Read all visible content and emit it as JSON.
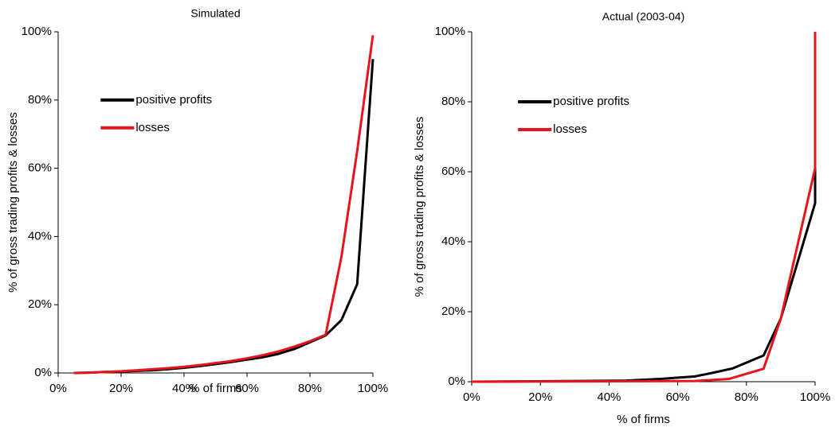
{
  "chart_data": [
    {
      "type": "line",
      "title": "Simulated",
      "xlabel": "% of firms",
      "ylabel": "% of gross trading profits & losses",
      "xlim": [
        0,
        100
      ],
      "ylim": [
        0,
        100
      ],
      "xticks": [
        {
          "value": 0,
          "label": "0%"
        },
        {
          "value": 20,
          "label": "20%"
        },
        {
          "value": 40,
          "label": "40%"
        },
        {
          "value": 60,
          "label": "60%"
        },
        {
          "value": 80,
          "label": "80%"
        },
        {
          "value": 100,
          "label": "100%"
        }
      ],
      "yticks": [
        {
          "value": 0,
          "label": "0%"
        },
        {
          "value": 20,
          "label": "20%"
        },
        {
          "value": 40,
          "label": "40%"
        },
        {
          "value": 60,
          "label": "60%"
        },
        {
          "value": 80,
          "label": "80%"
        },
        {
          "value": 100,
          "label": "100%"
        }
      ],
      "legend": "upper left",
      "series": [
        {
          "name": "positive profits",
          "color": "#000000",
          "x": [
            5,
            10,
            15,
            20,
            25,
            30,
            35,
            40,
            45,
            50,
            55,
            60,
            65,
            70,
            75,
            80,
            85,
            90,
            95,
            100
          ],
          "values": [
            0,
            0.1,
            0.3,
            0.4,
            0.6,
            0.8,
            1.1,
            1.5,
            2,
            2.6,
            3.2,
            3.9,
            4.6,
            5.6,
            7,
            9,
            11,
            15.5,
            26,
            92
          ]
        },
        {
          "name": "losses",
          "color": "#e8141b",
          "x": [
            5,
            10,
            15,
            20,
            25,
            30,
            35,
            40,
            45,
            50,
            55,
            60,
            65,
            70,
            75,
            80,
            85,
            90,
            95,
            100
          ],
          "values": [
            0,
            0.1,
            0.3,
            0.5,
            0.8,
            1.1,
            1.4,
            1.8,
            2.3,
            2.9,
            3.5,
            4.3,
            5.2,
            6.3,
            7.7,
            9.3,
            11.2,
            34,
            65,
            99
          ]
        }
      ]
    },
    {
      "type": "line",
      "title": "Actual (2003-04)",
      "xlabel": "% of firms",
      "ylabel": "% of gross trading profits & losses",
      "xlim": [
        0,
        100
      ],
      "ylim": [
        0,
        100
      ],
      "xticks": [
        {
          "value": 0,
          "label": "0%"
        },
        {
          "value": 20,
          "label": "20%"
        },
        {
          "value": 40,
          "label": "40%"
        },
        {
          "value": 60,
          "label": "60%"
        },
        {
          "value": 80,
          "label": "80%"
        },
        {
          "value": 100,
          "label": "100%"
        }
      ],
      "yticks": [
        {
          "value": 0,
          "label": "0%"
        },
        {
          "value": 20,
          "label": "20%"
        },
        {
          "value": 40,
          "label": "40%"
        },
        {
          "value": 60,
          "label": "60%"
        },
        {
          "value": 80,
          "label": "80%"
        },
        {
          "value": 100,
          "label": "100%"
        }
      ],
      "legend": "upper left",
      "series": [
        {
          "name": "positive profits",
          "color": "#000000",
          "x": [
            0,
            45,
            55,
            65,
            70,
            76,
            85,
            90,
            100,
            100
          ],
          "values": [
            0,
            0.3,
            0.8,
            1.5,
            2.5,
            3.8,
            7.5,
            18,
            51,
            100
          ]
        },
        {
          "name": "losses",
          "color": "#e8141b",
          "x": [
            0,
            65,
            75,
            85,
            90,
            100,
            100
          ],
          "values": [
            0,
            0.2,
            0.8,
            3.7,
            18,
            61,
            100
          ]
        }
      ]
    }
  ]
}
